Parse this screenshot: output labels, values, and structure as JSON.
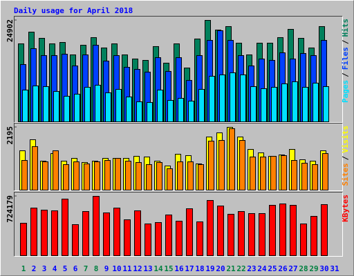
{
  "title": "Daily usage for April 2018",
  "legend_separator": "/",
  "chart_data": [
    {
      "type": "bar",
      "ylim": [
        0,
        24902
      ],
      "yticks": [
        24902
      ],
      "series": [
        {
          "name": "Hits",
          "color": "#00805c",
          "values": [
            19140,
            22020,
            20500,
            19140,
            19480,
            16430,
            18800,
            20670,
            18130,
            19140,
            16430,
            15420,
            15080,
            18470,
            14400,
            19140,
            13210,
            20330,
            24902,
            22530,
            23380,
            19310,
            16430,
            19310,
            19310,
            20670,
            22700,
            20500,
            18130,
            23380,
            null
          ]
        },
        {
          "name": "Files",
          "color": "#0040ff",
          "values": [
            14060,
            17960,
            16260,
            16260,
            16600,
            13720,
            16430,
            18800,
            14910,
            16260,
            13380,
            12870,
            12200,
            15750,
            12370,
            15750,
            10160,
            16260,
            19990,
            22360,
            19990,
            16260,
            13720,
            15420,
            15080,
            16940,
            15420,
            16770,
            16260,
            19990,
            null
          ]
        },
        {
          "name": "Pages",
          "color": "#00e0ff",
          "values": [
            7790,
            8810,
            8640,
            7450,
            6270,
            6780,
            8470,
            8980,
            7120,
            7960,
            6100,
            4910,
            4740,
            7790,
            5250,
            5760,
            5080,
            7960,
            11180,
            11520,
            12030,
            11520,
            8640,
            8130,
            8470,
            9320,
            9830,
            8470,
            9490,
            8640,
            null
          ]
        }
      ]
    },
    {
      "type": "bar",
      "ylim": [
        0,
        2195
      ],
      "yticks": [
        2195
      ],
      "series": [
        {
          "name": "Visits",
          "color": "#ffff00",
          "values": [
            1375,
            1761,
            1013,
            1278,
            1013,
            1110,
            965,
            1013,
            1110,
            1110,
            1110,
            1182,
            1158,
            1013,
            844,
            1254,
            1206,
            917,
            1857,
            2002,
            2195,
            1857,
            1423,
            1302,
            1182,
            1230,
            1423,
            1061,
            1013,
            1375,
            null
          ]
        },
        {
          "name": "Sites",
          "color": "#ff8000",
          "values": [
            1037,
            1520,
            989,
            1375,
            892,
            989,
            917,
            989,
            1037,
            1110,
            1013,
            965,
            892,
            965,
            748,
            989,
            989,
            892,
            1713,
            1737,
            2147,
            1737,
            1158,
            1158,
            1182,
            1206,
            1037,
            941,
            892,
            1278,
            null
          ]
        }
      ]
    },
    {
      "type": "bar",
      "ylim": [
        0,
        724179
      ],
      "yticks": [
        724179
      ],
      "categories": [
        "1",
        "2",
        "3",
        "4",
        "5",
        "6",
        "7",
        "8",
        "9",
        "10",
        "11",
        "12",
        "13",
        "14",
        "15",
        "16",
        "17",
        "18",
        "19",
        "20",
        "21",
        "22",
        "23",
        "24",
        "25",
        "26",
        "27",
        "28",
        "29",
        "30",
        "31"
      ],
      "category_colors": [
        "#008040",
        "#0000ff",
        "#0000ff",
        "#0000ff",
        "#0000ff",
        "#0000ff",
        "#008040",
        "#008040",
        "#0000ff",
        "#0000ff",
        "#0000ff",
        "#0000ff",
        "#0000ff",
        "#008040",
        "#008040",
        "#0000ff",
        "#0000ff",
        "#0000ff",
        "#0000ff",
        "#0000ff",
        "#008040",
        "#008040",
        "#0000ff",
        "#0000ff",
        "#0000ff",
        "#0000ff",
        "#0000ff",
        "#008040",
        "#008040",
        "#0000ff",
        "#0000ff"
      ],
      "series": [
        {
          "name": "KBytes",
          "color": "#ff0000",
          "values": [
            395800,
            581000,
            555800,
            547400,
            690500,
            378900,
            538900,
            724179,
            522100,
            581000,
            437900,
            547400,
            387400,
            404200,
            496800,
            421100,
            572600,
            412600,
            673700,
            606300,
            505300,
            538900,
            513700,
            513700,
            614700,
            631600,
            614700,
            387400,
            480000,
            623200,
            null
          ]
        }
      ]
    }
  ]
}
